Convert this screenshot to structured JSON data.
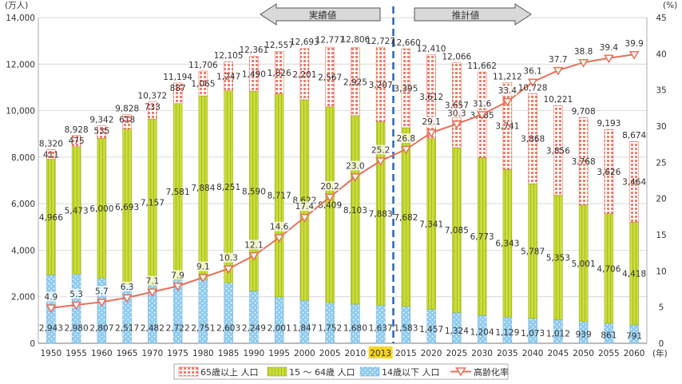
{
  "chart_data": {
    "type": "bar",
    "stacked": true,
    "categories": [
      "1950",
      "1955",
      "1960",
      "1965",
      "1970",
      "1975",
      "1980",
      "1985",
      "1990",
      "1995",
      "2000",
      "2005",
      "2010",
      "2013",
      "2015",
      "2020",
      "2025",
      "2030",
      "2035",
      "2040",
      "2045",
      "2050",
      "2055",
      "2060"
    ],
    "x_unit_label": "(年)",
    "highlight_category": "2013",
    "y_left": {
      "unit_label": "(万人)",
      "ylim": [
        0,
        14000
      ],
      "ticks": [
        0,
        2000,
        4000,
        6000,
        8000,
        10000,
        12000,
        14000
      ],
      "tick_labels": [
        "0",
        "2,000",
        "4,000",
        "6,000",
        "8,000",
        "10,000",
        "12,000",
        "14,000"
      ]
    },
    "y_right": {
      "unit_label": "(%)",
      "ylim": [
        0,
        45
      ],
      "ticks": [
        0,
        5,
        10,
        15,
        20,
        25,
        30,
        35,
        40,
        45
      ],
      "tick_labels": [
        "0",
        "5",
        "10",
        "15",
        "20",
        "25",
        "30",
        "35",
        "40",
        "45"
      ]
    },
    "series": [
      {
        "name": "14歳以下 人口",
        "color": "#9fd3f0",
        "values": [
          2943,
          2980,
          2807,
          2517,
          2482,
          2722,
          2751,
          2603,
          2249,
          2001,
          1847,
          1752,
          1680,
          1637,
          1583,
          1457,
          1324,
          1204,
          1129,
          1073,
          1012,
          939,
          861,
          791
        ],
        "labels": [
          "2,943",
          "2,980",
          "2,807",
          "2,517",
          "2,482",
          "2,722",
          "2,751",
          "2,603",
          "2,249",
          "2,001",
          "1,847",
          "1,752",
          "1,680",
          "1,637",
          "1,583",
          "1,457",
          "1,324",
          "1,204",
          "1,129",
          "1,073",
          "1,012",
          "939",
          "861",
          "791"
        ]
      },
      {
        "name": "15 ～ 64歳 人口",
        "color": "#c8dc3c",
        "values": [
          4966,
          5473,
          6000,
          6693,
          7157,
          7581,
          7884,
          8251,
          8590,
          8717,
          8622,
          8409,
          8103,
          7883,
          7682,
          7341,
          7085,
          6773,
          6343,
          5787,
          5353,
          5001,
          4706,
          4418
        ],
        "labels": [
          "4,966",
          "5,473",
          "6,000",
          "6,693",
          "7,157",
          "7,581",
          "7,884",
          "8,251",
          "8,590",
          "8,717",
          "8,622",
          "8,409",
          "8,103",
          "7,883",
          "7,682",
          "7,341",
          "7,085",
          "6,773",
          "6,343",
          "5,787",
          "5,353",
          "5,001",
          "4,706",
          "4,418"
        ]
      },
      {
        "name": "65歳以上 人口",
        "color": "#f08a7c",
        "values": [
          411,
          475,
          535,
          618,
          733,
          887,
          1065,
          1247,
          1490,
          1826,
          2201,
          2567,
          2925,
          3207,
          3395,
          3612,
          3657,
          3685,
          3741,
          3868,
          3856,
          3768,
          3626,
          3464
        ],
        "labels": [
          "411",
          "475",
          "535",
          "618",
          "733",
          "887",
          "1,065",
          "1,247",
          "1,490",
          "1,826",
          "2,201",
          "2,567",
          "2,925",
          "3,207",
          "3,395",
          "3,612",
          "3,657",
          "3,685",
          "3,741",
          "3,868",
          "3,856",
          "3,768",
          "3,626",
          "3,464"
        ]
      }
    ],
    "totals": {
      "values": [
        8320,
        8928,
        9342,
        9828,
        10372,
        11194,
        11706,
        12105,
        12361,
        12557,
        12693,
        12777,
        12806,
        12727,
        12660,
        12410,
        12066,
        11662,
        11212,
        10728,
        10221,
        9708,
        9193,
        8674
      ],
      "labels": [
        "8,320",
        "8,928",
        "9,342",
        "9,828",
        "10,372",
        "11,194",
        "11,706",
        "12,105",
        "12,361",
        "12,557",
        "12,693",
        "12,777",
        "12,806",
        "12,727",
        "12,660",
        "12,410",
        "12,066",
        "11,662",
        "11,212",
        "10,728",
        "10,221",
        "9,708",
        "9,193",
        "8,674"
      ]
    },
    "line_series": {
      "name": "高齢化率",
      "axis": "right",
      "color": "#e8705a",
      "values": [
        4.9,
        5.3,
        5.7,
        6.3,
        7.1,
        7.9,
        9.1,
        10.3,
        12.1,
        14.6,
        17.4,
        20.2,
        23.0,
        25.2,
        26.8,
        29.1,
        30.3,
        31.6,
        33.4,
        36.1,
        37.7,
        38.8,
        39.4,
        39.9
      ],
      "labels": [
        "4.9",
        "5.3",
        "5.7",
        "6.3",
        "7.1",
        "7.9",
        "9.1",
        "10.3",
        "12.1",
        "14.6",
        "17.4",
        "20.2",
        "23.0",
        "25.2",
        "26.8",
        "29.1",
        "30.3",
        "31.6",
        "33.4",
        "36.1",
        "37.7",
        "38.8",
        "39.4",
        "39.9"
      ]
    },
    "annotations": {
      "actual_label": "実績値",
      "estimate_label": "推計値",
      "divider_after": "2013"
    },
    "legend": {
      "placement": "bottom",
      "items": [
        "65歳以上 人口",
        "15 ～ 64歳 人口",
        "14歳以下 人口",
        "高齢化率"
      ]
    }
  }
}
